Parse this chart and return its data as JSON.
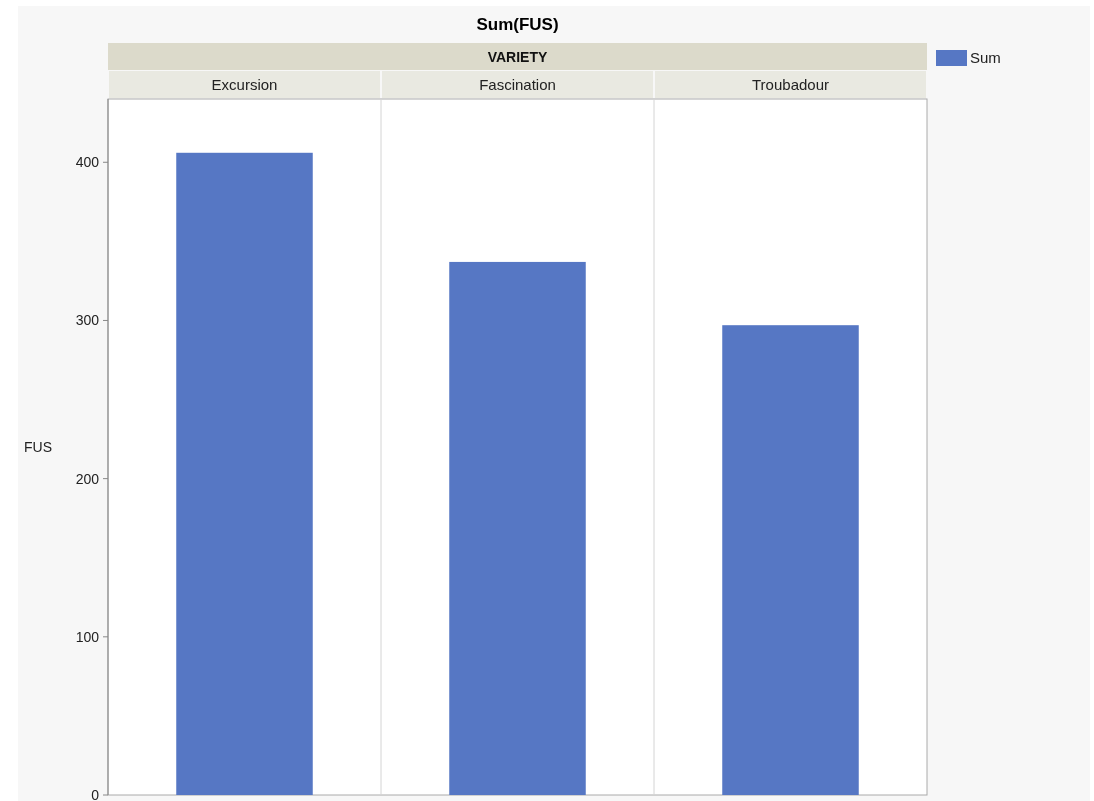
{
  "chart_data": {
    "type": "bar",
    "title": "Sum(FUS)",
    "xlabel": "VARIETY",
    "ylabel": "FUS",
    "categories": [
      "Excursion",
      "Fascination",
      "Troubadour"
    ],
    "series": [
      {
        "name": "Sum",
        "color": "#5677c4",
        "values": [
          406,
          337,
          297
        ]
      }
    ],
    "ylim": [
      0,
      440
    ],
    "yticks": [
      0,
      100,
      200,
      300,
      400
    ],
    "legend": "top right"
  }
}
